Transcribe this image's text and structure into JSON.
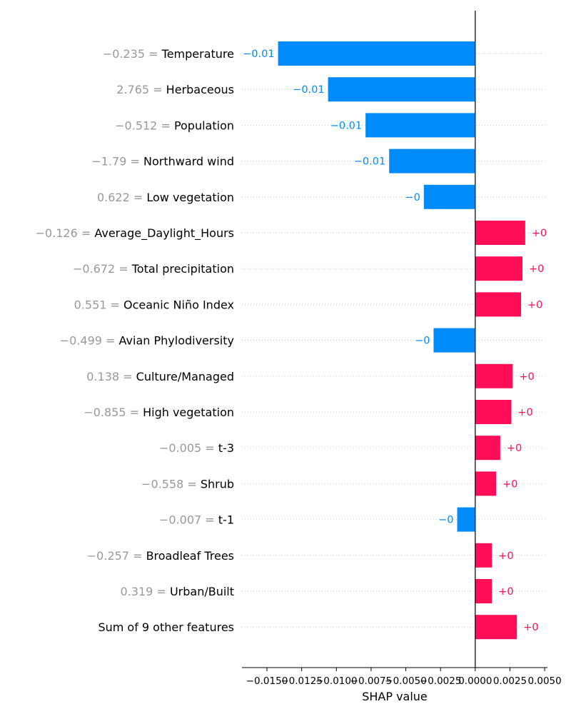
{
  "chart_data": {
    "type": "bar",
    "orientation": "horizontal",
    "title": "",
    "xlabel": "SHAP value",
    "ylabel": "",
    "xlim": [
      -0.0168,
      0.0052
    ],
    "grid": "dotted horizontal row lines",
    "legend": "none",
    "colors": {
      "positive": "#ff0d57",
      "negative": "#008bfb",
      "feature_value": "#999999"
    },
    "xticks": [
      -0.015,
      -0.0125,
      -0.01,
      -0.0075,
      -0.005,
      -0.0025,
      0.0,
      0.0025,
      0.005
    ],
    "xtick_labels": [
      "−0.0150",
      "−0.0125",
      "−0.0100",
      "−0.0075",
      "−0.0050",
      "−0.0025",
      "0.0000",
      "0.0025",
      "0.0050"
    ],
    "rows": [
      {
        "value": "−0.235",
        "feature": "Temperature",
        "shap": -0.0142,
        "label": "−0.01"
      },
      {
        "value": "2.765",
        "feature": "Herbaceous",
        "shap": -0.0106,
        "label": "−0.01"
      },
      {
        "value": "−0.512",
        "feature": "Population",
        "shap": -0.0079,
        "label": "−0.01"
      },
      {
        "value": "−1.79",
        "feature": "Northward wind",
        "shap": -0.0062,
        "label": "−0.01"
      },
      {
        "value": "0.622",
        "feature": "Low vegetation",
        "shap": -0.0037,
        "label": "−0"
      },
      {
        "value": "−0.126",
        "feature": "Average_Daylight_Hours",
        "shap": 0.0036,
        "label": "+0"
      },
      {
        "value": "−0.672",
        "feature": "Total precipitation",
        "shap": 0.0034,
        "label": "+0"
      },
      {
        "value": "0.551",
        "feature": "Oceanic Niño Index",
        "shap": 0.0033,
        "label": "+0"
      },
      {
        "value": "−0.499",
        "feature": "Avian Phylodiversity",
        "shap": -0.003,
        "label": "−0"
      },
      {
        "value": "0.138",
        "feature": "Culture/Managed",
        "shap": 0.0027,
        "label": "+0"
      },
      {
        "value": "−0.855",
        "feature": "High vegetation",
        "shap": 0.0026,
        "label": "+0"
      },
      {
        "value": "−0.005",
        "feature": "t-3",
        "shap": 0.0018,
        "label": "+0"
      },
      {
        "value": "−0.558",
        "feature": "Shrub",
        "shap": 0.0015,
        "label": "+0"
      },
      {
        "value": "−0.007",
        "feature": "t-1",
        "shap": -0.0013,
        "label": "−0"
      },
      {
        "value": "−0.257",
        "feature": "Broadleaf Trees",
        "shap": 0.0012,
        "label": "+0"
      },
      {
        "value": "0.319",
        "feature": "Urban/Built",
        "shap": 0.0012,
        "label": "+0"
      },
      {
        "value": "",
        "feature": "Sum of 9 other features",
        "shap": 0.003,
        "label": "+0"
      }
    ]
  }
}
